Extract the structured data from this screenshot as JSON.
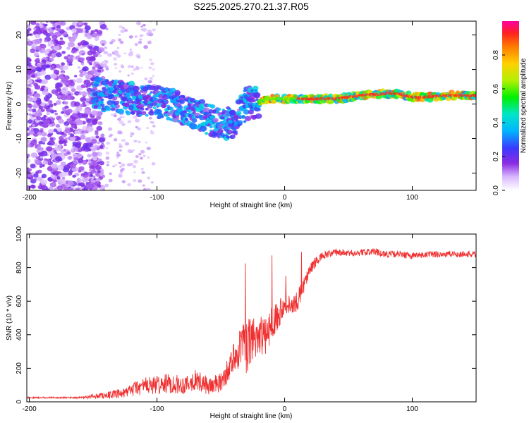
{
  "chart_data": [
    {
      "type": "heatmap",
      "title": "S225.2025.270.21.37.R05",
      "xlabel": "Height of straight line (km)",
      "ylabel": "Frequency (Hz)",
      "xlim": [
        -202,
        150
      ],
      "ylim": [
        -25,
        24
      ],
      "xticks": [
        -200,
        -100,
        0,
        100
      ],
      "xtick_labels": [
        "-200",
        "-100",
        "0",
        "100"
      ],
      "yticks": [
        -20,
        -10,
        0,
        10,
        20
      ],
      "ytick_labels": [
        "-20",
        "-10",
        "0",
        "10",
        "20"
      ],
      "colorbar": {
        "label": "Normalized spectral amplitude",
        "range": [
          0.0,
          1.0
        ],
        "ticks": [
          0.0,
          0.2,
          0.4,
          0.6,
          0.8
        ],
        "tick_labels": [
          "0.0",
          "0.2",
          "0.4",
          "0.6",
          "0.8"
        ]
      },
      "ridge": {
        "x": [
          -150,
          -130,
          -110,
          -90,
          -70,
          -50,
          -40,
          -30,
          -20,
          -10,
          0,
          20,
          40,
          60,
          80,
          90,
          100,
          110,
          130,
          150
        ],
        "y": [
          3,
          2,
          1,
          0,
          -3,
          -6,
          -5,
          0,
          1,
          1.5,
          1.5,
          1.5,
          1.5,
          2.5,
          3,
          3,
          2,
          2,
          2.5,
          2.5
        ]
      }
    },
    {
      "type": "line",
      "xlabel": "Height of straight line (km)",
      "ylabel": "SNR (10 * v/v)",
      "xlim": [
        -202,
        150
      ],
      "ylim": [
        0,
        1000
      ],
      "xticks": [
        -200,
        -100,
        0,
        100
      ],
      "xtick_labels": [
        "-200",
        "-100",
        "0",
        "100"
      ],
      "yticks": [
        0,
        200,
        400,
        600,
        800,
        1000
      ],
      "ytick_labels": [
        "0",
        "200",
        "400",
        "600",
        "800",
        "1000"
      ],
      "series": [
        {
          "name": "SNR",
          "color": "#f03030",
          "x": [
            -202,
            -160,
            -140,
            -125,
            -118,
            -110,
            -100,
            -90,
            -80,
            -70,
            -60,
            -50,
            -45,
            -40,
            -35,
            -30,
            -25,
            -20,
            -15,
            -10,
            -5,
            0,
            5,
            10,
            15,
            20,
            25,
            30,
            40,
            50,
            60,
            70,
            80,
            90,
            100,
            110,
            120,
            130,
            150
          ],
          "y": [
            25,
            25,
            40,
            50,
            80,
            95,
            100,
            110,
            100,
            130,
            95,
            110,
            180,
            260,
            330,
            320,
            380,
            410,
            380,
            480,
            520,
            600,
            560,
            600,
            700,
            790,
            840,
            870,
            890,
            885,
            890,
            895,
            880,
            880,
            870,
            875,
            880,
            880,
            880
          ],
          "noise": [
            4,
            5,
            20,
            30,
            45,
            55,
            55,
            60,
            55,
            60,
            55,
            60,
            70,
            90,
            130,
            150,
            150,
            130,
            110,
            100,
            90,
            70,
            60,
            60,
            50,
            40,
            30,
            25,
            20,
            20,
            20,
            20,
            20,
            20,
            20,
            20,
            20,
            20,
            20
          ]
        }
      ]
    }
  ]
}
